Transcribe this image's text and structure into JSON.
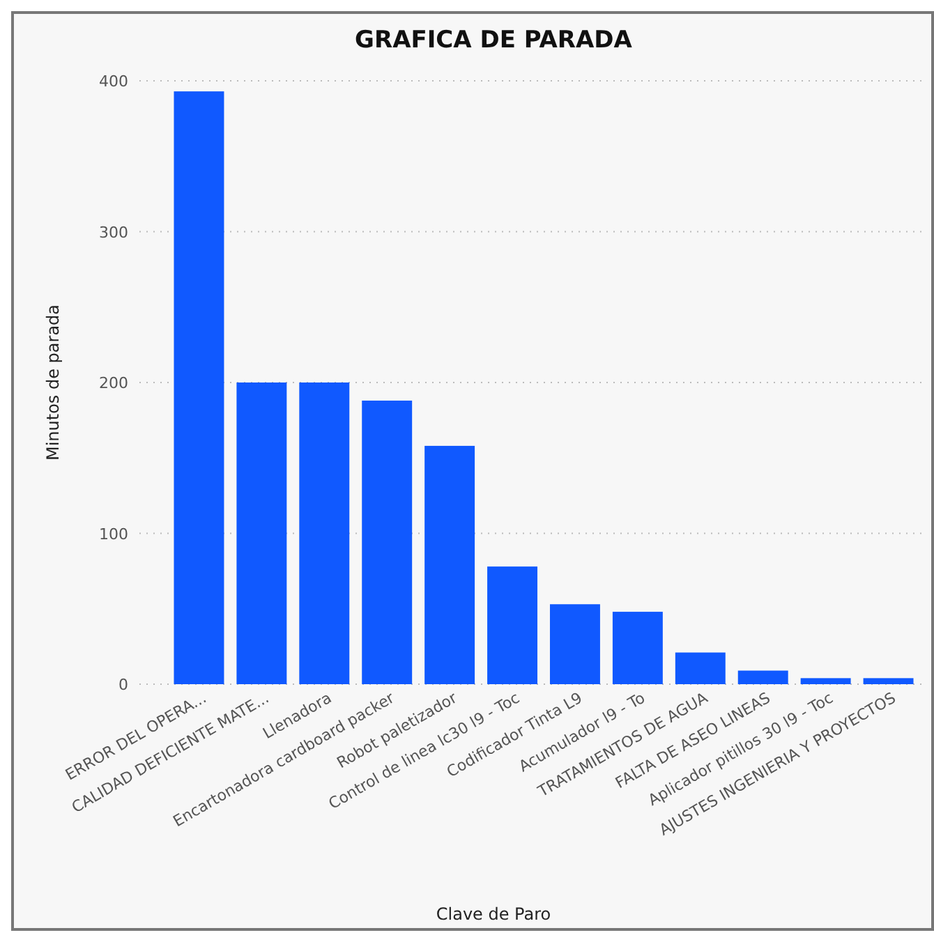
{
  "chart_data": {
    "type": "bar",
    "title": "GRAFICA DE PARADA",
    "xlabel": "Clave de Paro",
    "ylabel": "Minutos de parada",
    "categories": [
      "ERROR DEL OPERA...",
      "CALIDAD DEFICIENTE MATE...",
      "Llenadora",
      "Encartonadora cardboard packer",
      "Robot paletizador",
      "Control de linea lc30 l9 - Toc",
      "Codificador Tinta L9",
      "Acumulador l9 - To",
      "TRATAMIENTOS DE AGUA",
      "FALTA DE ASEO LINEAS",
      "Aplicador pitillos 30 l9 - Toc",
      "AJUSTES INGENIERIA Y PROYECTOS"
    ],
    "values": [
      393,
      200,
      200,
      188,
      158,
      78,
      53,
      48,
      21,
      9,
      4,
      4
    ],
    "color": "#1059ff",
    "ylim": [
      0,
      400
    ],
    "yticks": [
      0,
      100,
      200,
      300,
      400
    ],
    "grid": "y"
  }
}
